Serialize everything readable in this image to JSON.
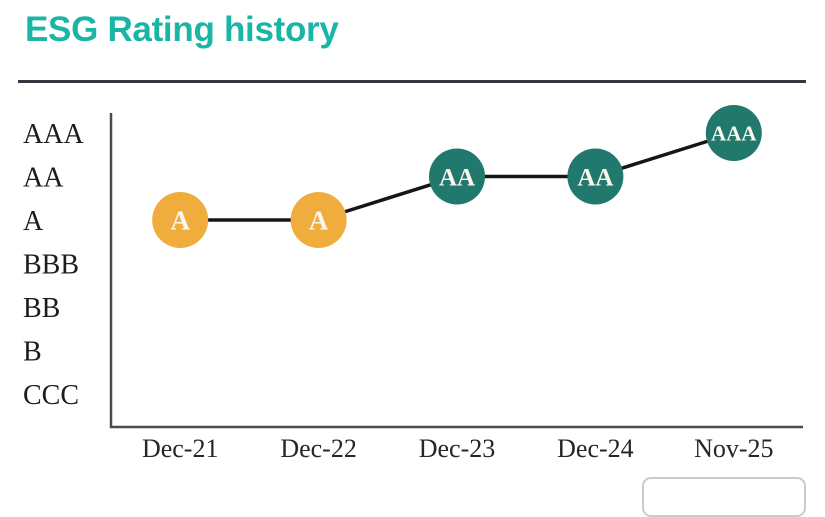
{
  "header": {
    "title": "ESG Rating history"
  },
  "colors": {
    "title_accent": "#1ab5a4",
    "divider": "#31373c",
    "axis": "#4b4b4b",
    "trend_line": "#161616",
    "leader_point": "#21796e",
    "average_point": "#f0ad3d",
    "point_label": "#fbf7ee"
  },
  "chart_data": {
    "type": "line",
    "title": "ESG Rating history",
    "xlabel": "",
    "ylabel": "",
    "grid": false,
    "legend_position": "none",
    "categories": [
      "Dec-21",
      "Dec-22",
      "Dec-23",
      "Dec-24",
      "Nov-25"
    ],
    "y_scale_top_to_bottom": [
      "AAA",
      "AA",
      "A",
      "BBB",
      "BB",
      "B",
      "CCC"
    ],
    "series": [
      {
        "name": "ESG Rating",
        "values": [
          "A",
          "A",
          "AA",
          "AA",
          "AAA"
        ]
      }
    ],
    "point_colors": [
      "#f0ad3d",
      "#f0ad3d",
      "#21796e",
      "#21796e",
      "#21796e"
    ]
  }
}
